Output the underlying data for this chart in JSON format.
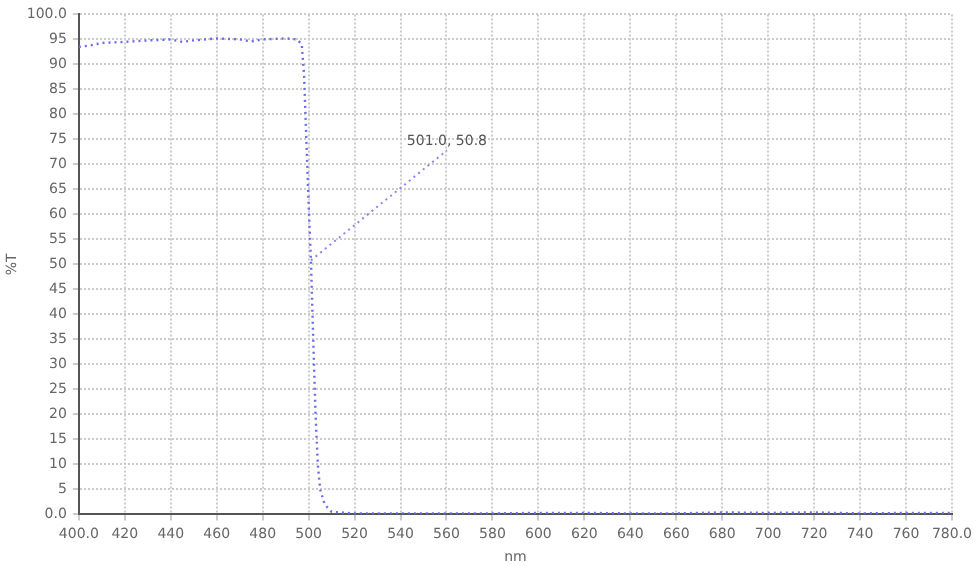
{
  "chart_data": {
    "type": "line",
    "xlabel": "nm",
    "ylabel": "%T",
    "x": [
      400,
      405,
      410,
      420,
      430,
      440,
      445,
      450,
      460,
      470,
      475,
      480,
      490,
      495,
      497,
      498,
      499,
      500,
      501,
      502,
      503,
      504,
      505,
      507,
      510,
      520,
      540,
      560,
      580,
      600,
      620,
      640,
      660,
      680,
      700,
      720,
      740,
      760,
      780
    ],
    "series": [
      {
        "color": "#6a6aee",
        "values": [
          93.5,
          93.8,
          94.3,
          94.5,
          94.8,
          95.0,
          94.5,
          94.8,
          95.2,
          95.0,
          94.6,
          95.0,
          95.2,
          95.0,
          94.0,
          88,
          75,
          62,
          50.8,
          35,
          20,
          10,
          5,
          2,
          0.5,
          0.2,
          0.2,
          0.2,
          0.2,
          0.3,
          0.3,
          0.2,
          0.2,
          0.4,
          0.3,
          0.4,
          0.2,
          0.3,
          0.3
        ]
      }
    ],
    "xlim": [
      400,
      780
    ],
    "xticks": [
      {
        "value": 400,
        "label": "400.0"
      },
      420,
      440,
      460,
      480,
      500,
      520,
      540,
      560,
      580,
      600,
      620,
      640,
      660,
      680,
      700,
      720,
      740,
      760,
      {
        "value": 780,
        "label": "780.0"
      }
    ],
    "ylim": [
      0,
      100
    ],
    "yticks": [
      {
        "value": 0,
        "label": "0.0"
      },
      5,
      10,
      15,
      20,
      25,
      30,
      35,
      40,
      45,
      50,
      55,
      60,
      65,
      70,
      75,
      80,
      85,
      90,
      95,
      {
        "value": 100,
        "label": "100.0"
      }
    ],
    "grid": true,
    "legend": false,
    "marker": "none",
    "line_style": "dotted",
    "annotations": [
      {
        "text": "501.0, 50.8",
        "x": 501,
        "y": 50.8
      }
    ]
  }
}
